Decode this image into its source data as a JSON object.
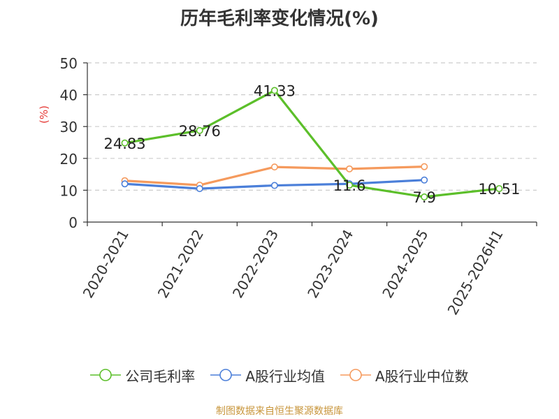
{
  "title": "历年毛利率变化情况(%)",
  "footer": "制图数据来自恒生聚源数据库",
  "chart_data": {
    "type": "line",
    "title": "历年毛利率变化情况(%)",
    "ylabel": "(%)",
    "xlabel": "",
    "ylim": [
      0,
      50
    ],
    "yticks": [
      0,
      10,
      20,
      30,
      40,
      50
    ],
    "grid": "horizontal-dashed",
    "legend_position": "bottom",
    "categories": [
      "2020-2021",
      "2021-2022",
      "2022-2023",
      "2023-2024",
      "2024-2025",
      "2025-2026H1"
    ],
    "series": [
      {
        "name": "公司毛利率",
        "color": "#5cbf2a",
        "values": [
          24.83,
          28.76,
          41.33,
          11.6,
          7.9,
          10.51
        ],
        "show_labels": true
      },
      {
        "name": "A股行业均值",
        "color": "#4b7fd9",
        "values": [
          12.0,
          10.5,
          11.5,
          12.0,
          13.2,
          null
        ],
        "show_labels": false
      },
      {
        "name": "A股行业中位数",
        "color": "#f59a5d",
        "values": [
          13.0,
          11.6,
          17.3,
          16.7,
          17.4,
          null
        ],
        "show_labels": false
      }
    ]
  }
}
